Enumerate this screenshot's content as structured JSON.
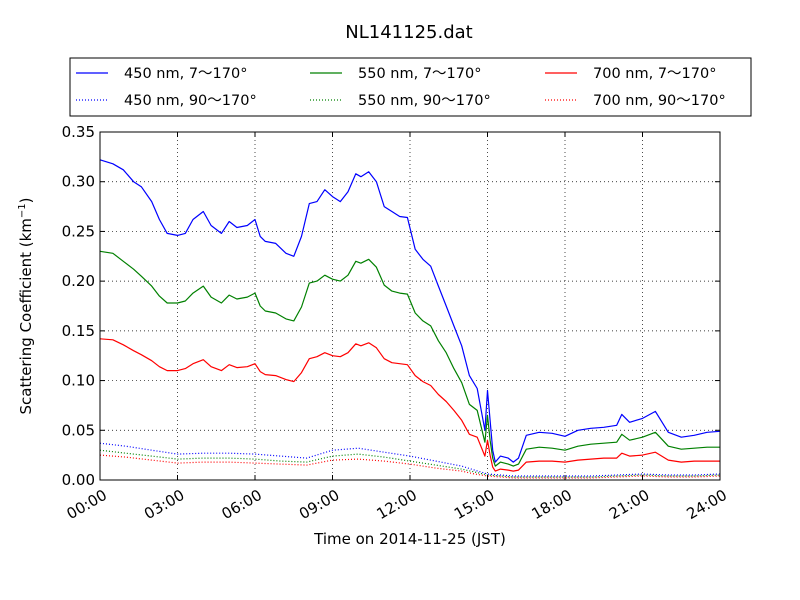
{
  "chart_data": {
    "type": "line",
    "title": "NL141125.dat",
    "xlabel": "Time on 2014-11-25 (JST)",
    "ylabel": "Scattering Coefficient (km⁻¹)",
    "ylabel_main": "Scattering Coefficient (km",
    "ylabel_sup": "−1",
    "ylabel_close": ")",
    "xlim": [
      0,
      24
    ],
    "ylim": [
      0,
      0.35
    ],
    "x_ticks": [
      {
        "value": 0,
        "label": "00:00"
      },
      {
        "value": 3,
        "label": "03:00"
      },
      {
        "value": 6,
        "label": "06:00"
      },
      {
        "value": 9,
        "label": "09:00"
      },
      {
        "value": 12,
        "label": "12:00"
      },
      {
        "value": 15,
        "label": "15:00"
      },
      {
        "value": 18,
        "label": "18:00"
      },
      {
        "value": 21,
        "label": "21:00"
      },
      {
        "value": 24,
        "label": "24:00"
      }
    ],
    "y_ticks": [
      {
        "value": 0.0,
        "label": "0.00"
      },
      {
        "value": 0.05,
        "label": "0.05"
      },
      {
        "value": 0.1,
        "label": "0.10"
      },
      {
        "value": 0.15,
        "label": "0.15"
      },
      {
        "value": 0.2,
        "label": "0.20"
      },
      {
        "value": 0.25,
        "label": "0.25"
      },
      {
        "value": 0.3,
        "label": "0.30"
      },
      {
        "value": 0.35,
        "label": "0.35"
      }
    ],
    "grid": true,
    "legend_position": "top",
    "series": [
      {
        "name": "450 nm, 7～170°",
        "color": "#0000ff",
        "style": "solid",
        "x": [
          0,
          0.5,
          0.9,
          1.3,
          1.6,
          2.0,
          2.3,
          2.6,
          3.0,
          3.3,
          3.6,
          4.0,
          4.3,
          4.7,
          5.0,
          5.3,
          5.7,
          6.0,
          6.2,
          6.4,
          6.8,
          7.2,
          7.5,
          7.8,
          8.1,
          8.4,
          8.7,
          9.0,
          9.3,
          9.6,
          9.9,
          10.1,
          10.4,
          10.7,
          11.0,
          11.3,
          11.6,
          11.9,
          12.2,
          12.5,
          12.8,
          13.1,
          13.4,
          13.7,
          14.0,
          14.3,
          14.6,
          14.9,
          15.0,
          15.1,
          15.2,
          15.3,
          15.5,
          15.8,
          16.0,
          16.2,
          16.5,
          17.0,
          17.5,
          18.0,
          18.5,
          19.0,
          19.5,
          20.0,
          20.2,
          20.5,
          21.0,
          21.5,
          22.0,
          22.5,
          23.0,
          23.5,
          24.0
        ],
        "y": [
          0.322,
          0.318,
          0.312,
          0.3,
          0.295,
          0.28,
          0.262,
          0.248,
          0.246,
          0.248,
          0.262,
          0.27,
          0.256,
          0.248,
          0.26,
          0.254,
          0.256,
          0.262,
          0.245,
          0.24,
          0.238,
          0.228,
          0.225,
          0.245,
          0.278,
          0.28,
          0.292,
          0.285,
          0.28,
          0.29,
          0.308,
          0.305,
          0.31,
          0.3,
          0.275,
          0.27,
          0.265,
          0.264,
          0.232,
          0.222,
          0.215,
          0.195,
          0.175,
          0.155,
          0.135,
          0.105,
          0.092,
          0.05,
          0.09,
          0.06,
          0.03,
          0.018,
          0.024,
          0.022,
          0.018,
          0.022,
          0.045,
          0.048,
          0.047,
          0.044,
          0.05,
          0.052,
          0.053,
          0.055,
          0.066,
          0.058,
          0.062,
          0.069,
          0.048,
          0.043,
          0.045,
          0.048,
          0.049
        ]
      },
      {
        "name": "450 nm, 90～170°",
        "color": "#0000ff",
        "style": "dotted",
        "x": [
          0,
          1,
          2,
          3,
          4,
          5,
          6,
          7,
          8,
          9,
          10,
          11,
          12,
          13,
          14,
          14.5,
          15,
          15.5,
          16,
          17,
          18,
          19,
          20,
          21,
          22,
          23,
          24
        ],
        "y": [
          0.037,
          0.034,
          0.03,
          0.026,
          0.027,
          0.027,
          0.026,
          0.024,
          0.022,
          0.03,
          0.032,
          0.028,
          0.024,
          0.019,
          0.014,
          0.01,
          0.006,
          0.005,
          0.004,
          0.004,
          0.004,
          0.004,
          0.005,
          0.006,
          0.005,
          0.005,
          0.006
        ]
      },
      {
        "name": "550 nm, 7～170°",
        "color": "#008000",
        "style": "solid",
        "x": [
          0,
          0.5,
          0.9,
          1.3,
          1.6,
          2.0,
          2.3,
          2.6,
          3.0,
          3.3,
          3.6,
          4.0,
          4.3,
          4.7,
          5.0,
          5.3,
          5.7,
          6.0,
          6.2,
          6.4,
          6.8,
          7.2,
          7.5,
          7.8,
          8.1,
          8.4,
          8.7,
          9.0,
          9.3,
          9.6,
          9.9,
          10.1,
          10.4,
          10.7,
          11.0,
          11.3,
          11.6,
          11.9,
          12.2,
          12.5,
          12.8,
          13.1,
          13.4,
          13.7,
          14.0,
          14.3,
          14.6,
          14.9,
          15.0,
          15.1,
          15.2,
          15.3,
          15.5,
          15.8,
          16.0,
          16.2,
          16.5,
          17.0,
          17.5,
          18.0,
          18.5,
          19.0,
          19.5,
          20.0,
          20.2,
          20.5,
          21.0,
          21.5,
          22.0,
          22.5,
          23.0,
          23.5,
          24.0
        ],
        "y": [
          0.23,
          0.228,
          0.22,
          0.212,
          0.205,
          0.195,
          0.185,
          0.178,
          0.178,
          0.18,
          0.188,
          0.195,
          0.184,
          0.178,
          0.186,
          0.182,
          0.184,
          0.188,
          0.175,
          0.17,
          0.168,
          0.162,
          0.16,
          0.174,
          0.198,
          0.2,
          0.206,
          0.202,
          0.2,
          0.206,
          0.22,
          0.218,
          0.222,
          0.214,
          0.196,
          0.19,
          0.188,
          0.187,
          0.168,
          0.16,
          0.155,
          0.14,
          0.128,
          0.112,
          0.098,
          0.076,
          0.07,
          0.038,
          0.065,
          0.04,
          0.022,
          0.014,
          0.018,
          0.016,
          0.014,
          0.016,
          0.031,
          0.033,
          0.032,
          0.03,
          0.034,
          0.036,
          0.037,
          0.038,
          0.046,
          0.04,
          0.043,
          0.048,
          0.034,
          0.031,
          0.032,
          0.033,
          0.033
        ]
      },
      {
        "name": "550 nm, 90～170°",
        "color": "#008000",
        "style": "dotted",
        "x": [
          0,
          1,
          2,
          3,
          4,
          5,
          6,
          7,
          8,
          9,
          10,
          11,
          12,
          13,
          14,
          14.5,
          15,
          15.5,
          16,
          17,
          18,
          19,
          20,
          21,
          22,
          23,
          24
        ],
        "y": [
          0.03,
          0.027,
          0.024,
          0.021,
          0.022,
          0.022,
          0.021,
          0.019,
          0.018,
          0.024,
          0.026,
          0.023,
          0.019,
          0.015,
          0.011,
          0.008,
          0.005,
          0.004,
          0.003,
          0.003,
          0.003,
          0.003,
          0.004,
          0.005,
          0.004,
          0.004,
          0.005
        ]
      },
      {
        "name": "700 nm, 7～170°",
        "color": "#ff0000",
        "style": "solid",
        "x": [
          0,
          0.5,
          0.9,
          1.3,
          1.6,
          2.0,
          2.3,
          2.6,
          3.0,
          3.3,
          3.6,
          4.0,
          4.3,
          4.7,
          5.0,
          5.3,
          5.7,
          6.0,
          6.2,
          6.4,
          6.8,
          7.2,
          7.5,
          7.8,
          8.1,
          8.4,
          8.7,
          9.0,
          9.3,
          9.6,
          9.9,
          10.1,
          10.4,
          10.7,
          11.0,
          11.3,
          11.6,
          11.9,
          12.2,
          12.5,
          12.8,
          13.1,
          13.4,
          13.7,
          14.0,
          14.3,
          14.6,
          14.9,
          15.0,
          15.1,
          15.2,
          15.3,
          15.5,
          15.8,
          16.0,
          16.2,
          16.5,
          17.0,
          17.5,
          18.0,
          18.5,
          19.0,
          19.5,
          20.0,
          20.2,
          20.5,
          21.0,
          21.5,
          22.0,
          22.5,
          23.0,
          23.5,
          24.0
        ],
        "y": [
          0.142,
          0.141,
          0.136,
          0.13,
          0.126,
          0.12,
          0.114,
          0.11,
          0.11,
          0.112,
          0.117,
          0.121,
          0.114,
          0.11,
          0.116,
          0.113,
          0.114,
          0.117,
          0.109,
          0.106,
          0.105,
          0.101,
          0.099,
          0.108,
          0.122,
          0.124,
          0.128,
          0.125,
          0.124,
          0.128,
          0.137,
          0.135,
          0.138,
          0.133,
          0.122,
          0.118,
          0.117,
          0.116,
          0.105,
          0.099,
          0.095,
          0.086,
          0.079,
          0.07,
          0.06,
          0.046,
          0.043,
          0.024,
          0.04,
          0.025,
          0.013,
          0.009,
          0.011,
          0.01,
          0.009,
          0.01,
          0.018,
          0.019,
          0.019,
          0.018,
          0.02,
          0.021,
          0.022,
          0.022,
          0.027,
          0.024,
          0.025,
          0.028,
          0.02,
          0.018,
          0.019,
          0.019,
          0.019
        ]
      },
      {
        "name": "700 nm, 90～170°",
        "color": "#ff0000",
        "style": "dotted",
        "x": [
          0,
          1,
          2,
          3,
          4,
          5,
          6,
          7,
          8,
          9,
          10,
          11,
          12,
          13,
          14,
          14.5,
          15,
          15.5,
          16,
          17,
          18,
          19,
          20,
          21,
          22,
          23,
          24
        ],
        "y": [
          0.025,
          0.023,
          0.02,
          0.017,
          0.018,
          0.018,
          0.017,
          0.016,
          0.015,
          0.02,
          0.021,
          0.019,
          0.016,
          0.012,
          0.009,
          0.006,
          0.004,
          0.003,
          0.002,
          0.002,
          0.002,
          0.002,
          0.003,
          0.004,
          0.003,
          0.003,
          0.004
        ]
      }
    ]
  }
}
